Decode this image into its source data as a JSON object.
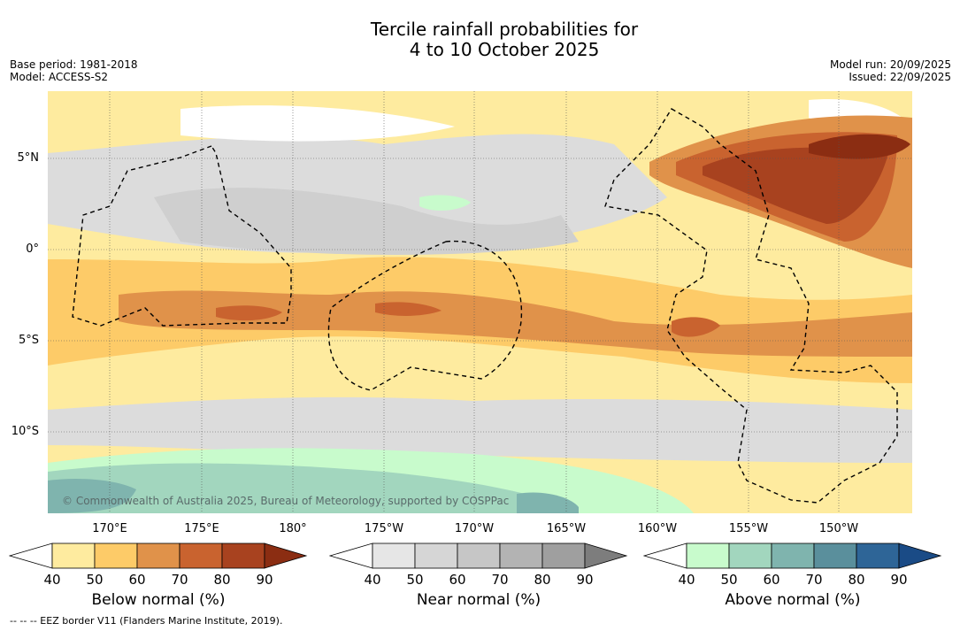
{
  "title_line1": "Tercile rainfall probabilities for",
  "title_line2": "4 to 10 October 2025",
  "base_period": "Base period: 1981-2018",
  "model": "Model: ACCESS-S2",
  "model_run": "Model run: 20/09/2025",
  "issued": "Issued: 22/09/2025",
  "lat_labels": [
    "5°N",
    "0°",
    "5°S",
    "10°S"
  ],
  "lon_labels": [
    "170°E",
    "175°E",
    "180°",
    "175°W",
    "170°W",
    "165°W",
    "160°W",
    "155°W",
    "150°W"
  ],
  "credit": "© Commonwealth of Australia 2025, Bureau of Meteorology, supported by COSPPac",
  "footnote": "-- -- -- EEZ border V11 (Flanders Marine Institute, 2019).",
  "colorbars": [
    {
      "label": "Below normal (%)",
      "ticks": [
        "40",
        "50",
        "60",
        "70",
        "80",
        "90"
      ],
      "colors": [
        "#ffffff",
        "#feeb9f",
        "#fdcb68",
        "#e0924a",
        "#c9632f",
        "#a8421f",
        "#8b2d12"
      ]
    },
    {
      "label": "Near normal (%)",
      "ticks": [
        "40",
        "50",
        "60",
        "70",
        "80",
        "90"
      ],
      "colors": [
        "#ffffff",
        "#e6e6e6",
        "#d6d6d6",
        "#c6c6c6",
        "#b3b3b3",
        "#9f9f9f",
        "#7d7d7d"
      ]
    },
    {
      "label": "Above normal (%)",
      "ticks": [
        "40",
        "50",
        "60",
        "70",
        "80",
        "90"
      ],
      "colors": [
        "#ffffff",
        "#c8fbcc",
        "#a2d6be",
        "#7fb4ae",
        "#5a8f9c",
        "#2e6597",
        "#1a4b86"
      ]
    }
  ]
}
